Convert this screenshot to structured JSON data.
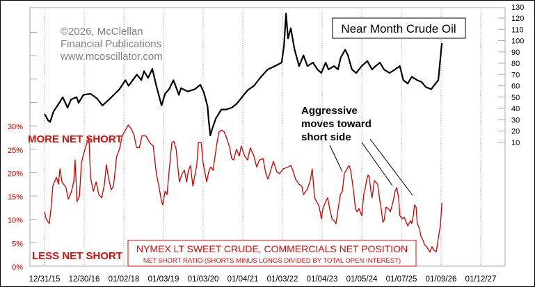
{
  "chart_data": [
    {
      "type": "line",
      "title": "Near Month Crude Oil",
      "axis": "right",
      "ylim": [
        0,
        130
      ],
      "yticks": [
        "130",
        "120",
        "110",
        "100",
        "90",
        "80",
        "70",
        "60",
        "50",
        "40",
        "30",
        "20",
        "10"
      ],
      "ytick_values": [
        130,
        120,
        110,
        100,
        90,
        80,
        70,
        60,
        50,
        40,
        30,
        20,
        10
      ],
      "color": "#000000",
      "points": [
        [
          2016.0,
          35
        ],
        [
          2016.02,
          34
        ],
        [
          2016.09,
          29.5
        ],
        [
          2016.14,
          28
        ],
        [
          2016.23,
          37.5
        ],
        [
          2016.32,
          42
        ],
        [
          2016.46,
          50
        ],
        [
          2016.58,
          40.6
        ],
        [
          2016.67,
          48
        ],
        [
          2016.81,
          50
        ],
        [
          2016.86,
          45
        ],
        [
          2016.98,
          52
        ],
        [
          2017.16,
          53
        ],
        [
          2017.33,
          48.6
        ],
        [
          2017.46,
          42.5
        ],
        [
          2017.63,
          48
        ],
        [
          2017.74,
          51.7
        ],
        [
          2017.89,
          57
        ],
        [
          2018.04,
          65
        ],
        [
          2018.12,
          60
        ],
        [
          2018.33,
          70
        ],
        [
          2018.44,
          65
        ],
        [
          2018.51,
          73
        ],
        [
          2018.61,
          67
        ],
        [
          2018.72,
          75
        ],
        [
          2018.82,
          60
        ],
        [
          2018.88,
          52
        ],
        [
          2018.95,
          42.5
        ],
        [
          2019.04,
          53
        ],
        [
          2019.14,
          57
        ],
        [
          2019.25,
          65
        ],
        [
          2019.39,
          52
        ],
        [
          2019.44,
          58
        ],
        [
          2019.61,
          55
        ],
        [
          2019.79,
          57
        ],
        [
          2019.93,
          61
        ],
        [
          2020.02,
          54
        ],
        [
          2020.11,
          42
        ],
        [
          2020.14,
          29.5
        ],
        [
          2020.18,
          16
        ],
        [
          2020.23,
          22
        ],
        [
          2020.32,
          31
        ],
        [
          2020.46,
          39
        ],
        [
          2020.58,
          39
        ],
        [
          2020.72,
          40.6
        ],
        [
          2020.84,
          44
        ],
        [
          2020.98,
          50
        ],
        [
          2021.12,
          56
        ],
        [
          2021.28,
          60
        ],
        [
          2021.46,
          68
        ],
        [
          2021.63,
          74.5
        ],
        [
          2021.81,
          77.5
        ],
        [
          2021.98,
          80.6
        ],
        [
          2022.04,
          96
        ],
        [
          2022.09,
          124
        ],
        [
          2022.14,
          102
        ],
        [
          2022.21,
          111
        ],
        [
          2022.3,
          93
        ],
        [
          2022.42,
          77.5
        ],
        [
          2022.53,
          87
        ],
        [
          2022.63,
          77.5
        ],
        [
          2022.77,
          80.6
        ],
        [
          2022.88,
          74.5
        ],
        [
          2022.98,
          71.4
        ],
        [
          2023.09,
          80.6
        ],
        [
          2023.16,
          74.5
        ],
        [
          2023.3,
          77.5
        ],
        [
          2023.4,
          74.5
        ],
        [
          2023.47,
          85
        ],
        [
          2023.58,
          92
        ],
        [
          2023.65,
          87
        ],
        [
          2023.75,
          74.5
        ],
        [
          2023.86,
          71.4
        ],
        [
          2024.0,
          77.5
        ],
        [
          2024.14,
          82
        ],
        [
          2024.26,
          74.5
        ],
        [
          2024.35,
          77.5
        ],
        [
          2024.46,
          80.6
        ],
        [
          2024.56,
          74.5
        ],
        [
          2024.7,
          71.4
        ],
        [
          2024.84,
          74.5
        ],
        [
          2024.96,
          77.5
        ],
        [
          2025.05,
          65
        ],
        [
          2025.16,
          62
        ],
        [
          2025.26,
          68
        ],
        [
          2025.4,
          65
        ],
        [
          2025.51,
          63.4
        ],
        [
          2025.61,
          59
        ],
        [
          2025.75,
          57
        ],
        [
          2025.86,
          62
        ],
        [
          2025.93,
          65
        ],
        [
          2025.98,
          83.7
        ],
        [
          2026.02,
          97.8
        ]
      ]
    },
    {
      "type": "line",
      "title": "NYMEX LT SWEET CRUDE, COMMERCIALS NET POSITION",
      "subtitle": "NET SHORT RATIO (SHORTS MINUS LONGS DIVIDED BY TOTAL OPEN INTEREST)",
      "axis": "left",
      "ylim": [
        0,
        55
      ],
      "yticks": [
        "30%",
        "25%",
        "20%",
        "15%",
        "10%",
        "5%",
        "0%"
      ],
      "ytick_values": [
        30,
        25,
        20,
        15,
        10,
        5,
        0
      ],
      "color": "#cc0000",
      "points": [
        [
          2016.0,
          11.6
        ],
        [
          2016.04,
          10.1
        ],
        [
          2016.12,
          9.1
        ],
        [
          2016.16,
          12.0
        ],
        [
          2016.21,
          17.2
        ],
        [
          2016.3,
          19.0
        ],
        [
          2016.35,
          17.5
        ],
        [
          2016.39,
          20.8
        ],
        [
          2016.44,
          18.0
        ],
        [
          2016.54,
          16.8
        ],
        [
          2016.6,
          14.3
        ],
        [
          2016.68,
          16.0
        ],
        [
          2016.74,
          18.3
        ],
        [
          2016.77,
          22.7
        ],
        [
          2016.82,
          13.8
        ],
        [
          2016.88,
          15.0
        ],
        [
          2016.93,
          22.0
        ],
        [
          2016.98,
          23.9
        ],
        [
          2017.07,
          26.4
        ],
        [
          2017.12,
          27.5
        ],
        [
          2017.16,
          19.0
        ],
        [
          2017.23,
          16.0
        ],
        [
          2017.3,
          18.0
        ],
        [
          2017.37,
          15.3
        ],
        [
          2017.44,
          14.6
        ],
        [
          2017.51,
          17.5
        ],
        [
          2017.56,
          21.7
        ],
        [
          2017.61,
          19.0
        ],
        [
          2017.68,
          16.3
        ],
        [
          2017.74,
          17.2
        ],
        [
          2017.82,
          23.5
        ],
        [
          2017.89,
          25.0
        ],
        [
          2017.96,
          27.9
        ],
        [
          2018.04,
          29.1
        ],
        [
          2018.11,
          30.2
        ],
        [
          2018.18,
          29.4
        ],
        [
          2018.25,
          28.2
        ],
        [
          2018.32,
          25.4
        ],
        [
          2018.39,
          25.3
        ],
        [
          2018.46,
          27.9
        ],
        [
          2018.56,
          27.8
        ],
        [
          2018.65,
          26.4
        ],
        [
          2018.74,
          25.7
        ],
        [
          2018.82,
          19.8
        ],
        [
          2018.89,
          16.8
        ],
        [
          2018.95,
          13.8
        ],
        [
          2018.98,
          13.1
        ],
        [
          2019.04,
          16.0
        ],
        [
          2019.09,
          15.3
        ],
        [
          2019.14,
          20.2
        ],
        [
          2019.21,
          26.4
        ],
        [
          2019.26,
          26.7
        ],
        [
          2019.32,
          25.0
        ],
        [
          2019.37,
          20.5
        ],
        [
          2019.4,
          18.0
        ],
        [
          2019.47,
          19.8
        ],
        [
          2019.53,
          20.5
        ],
        [
          2019.58,
          18.0
        ],
        [
          2019.63,
          20.5
        ],
        [
          2019.68,
          21.5
        ],
        [
          2019.74,
          17.1
        ],
        [
          2019.84,
          21.7
        ],
        [
          2019.88,
          26.4
        ],
        [
          2019.95,
          26.4
        ],
        [
          2020.0,
          22.0
        ],
        [
          2020.05,
          19.8
        ],
        [
          2020.09,
          18.0
        ],
        [
          2020.14,
          20.2
        ],
        [
          2020.19,
          21.2
        ],
        [
          2020.25,
          20.5
        ],
        [
          2020.3,
          23.5
        ],
        [
          2020.35,
          26.4
        ],
        [
          2020.4,
          28.7
        ],
        [
          2020.46,
          29.1
        ],
        [
          2020.53,
          28.7
        ],
        [
          2020.6,
          27.2
        ],
        [
          2020.67,
          25.3
        ],
        [
          2020.72,
          23.0
        ],
        [
          2020.77,
          22.7
        ],
        [
          2020.84,
          25.0
        ],
        [
          2020.91,
          23.5
        ],
        [
          2020.96,
          25.7
        ],
        [
          2021.05,
          23.5
        ],
        [
          2021.12,
          22.7
        ],
        [
          2021.19,
          25.3
        ],
        [
          2021.28,
          23.5
        ],
        [
          2021.35,
          21.2
        ],
        [
          2021.42,
          22.7
        ],
        [
          2021.51,
          23.0
        ],
        [
          2021.58,
          19.8
        ],
        [
          2021.63,
          18.6
        ],
        [
          2021.68,
          19.8
        ],
        [
          2021.77,
          22.4
        ],
        [
          2021.86,
          20.1
        ],
        [
          2021.93,
          19.8
        ],
        [
          2022.02,
          20.8
        ],
        [
          2022.14,
          21.2
        ],
        [
          2022.21,
          21.5
        ],
        [
          2022.26,
          20.5
        ],
        [
          2022.33,
          18.6
        ],
        [
          2022.42,
          17.5
        ],
        [
          2022.49,
          17.1
        ],
        [
          2022.53,
          15.3
        ],
        [
          2022.63,
          16.5
        ],
        [
          2022.7,
          18.3
        ],
        [
          2022.75,
          20.8
        ],
        [
          2022.81,
          14.6
        ],
        [
          2022.86,
          13.8
        ],
        [
          2022.91,
          13.1
        ],
        [
          2022.95,
          11.6
        ],
        [
          2022.98,
          10.1
        ],
        [
          2023.02,
          12.3
        ],
        [
          2023.09,
          13.8
        ],
        [
          2023.14,
          14.6
        ],
        [
          2023.19,
          12.3
        ],
        [
          2023.25,
          10.1
        ],
        [
          2023.3,
          9.7
        ],
        [
          2023.35,
          9.1
        ],
        [
          2023.4,
          12.0
        ],
        [
          2023.46,
          15.3
        ],
        [
          2023.51,
          16.0
        ],
        [
          2023.56,
          19.8
        ],
        [
          2023.61,
          20.5
        ],
        [
          2023.65,
          21.2
        ],
        [
          2023.68,
          21.5
        ],
        [
          2023.72,
          20.5
        ],
        [
          2023.77,
          17.5
        ],
        [
          2023.81,
          14.6
        ],
        [
          2023.84,
          12.3
        ],
        [
          2023.88,
          11.6
        ],
        [
          2023.93,
          12.3
        ],
        [
          2024.0,
          10.8
        ],
        [
          2024.05,
          15.3
        ],
        [
          2024.09,
          16.8
        ],
        [
          2024.12,
          18.3
        ],
        [
          2024.16,
          19.5
        ],
        [
          2024.19,
          19.0
        ],
        [
          2024.23,
          16.0
        ],
        [
          2024.26,
          14.6
        ],
        [
          2024.32,
          18.3
        ],
        [
          2024.4,
          17.5
        ],
        [
          2024.46,
          13.8
        ],
        [
          2024.49,
          12.3
        ],
        [
          2024.53,
          9.4
        ],
        [
          2024.56,
          9.7
        ],
        [
          2024.61,
          12.6
        ],
        [
          2024.67,
          12.3
        ],
        [
          2024.72,
          11.6
        ],
        [
          2024.79,
          13.8
        ],
        [
          2024.84,
          16.0
        ],
        [
          2024.88,
          16.8
        ],
        [
          2024.93,
          14.6
        ],
        [
          2024.96,
          10.8
        ],
        [
          2025.02,
          10.1
        ],
        [
          2025.07,
          10.5
        ],
        [
          2025.12,
          9.4
        ],
        [
          2025.16,
          8.6
        ],
        [
          2025.23,
          9.7
        ],
        [
          2025.26,
          9.1
        ],
        [
          2025.3,
          10.8
        ],
        [
          2025.33,
          13.1
        ],
        [
          2025.37,
          12.6
        ],
        [
          2025.4,
          9.1
        ],
        [
          2025.46,
          7.9
        ],
        [
          2025.49,
          6.4
        ],
        [
          2025.54,
          5.6
        ],
        [
          2025.58,
          4.6
        ],
        [
          2025.63,
          4.2
        ],
        [
          2025.67,
          3.7
        ],
        [
          2025.72,
          3.0
        ],
        [
          2025.77,
          4.2
        ],
        [
          2025.81,
          3.4
        ],
        [
          2025.88,
          3.1
        ],
        [
          2025.91,
          4.9
        ],
        [
          2025.95,
          7.1
        ],
        [
          2025.98,
          8.6
        ],
        [
          2026.0,
          10.8
        ],
        [
          2026.02,
          13.5
        ]
      ]
    }
  ],
  "x_axis": {
    "ticks": [
      "12/31/15",
      "12/30/16",
      "01/02/18",
      "01/03/19",
      "01/03/20",
      "01/04/21",
      "01/03/22",
      "01/04/23",
      "01/05/24",
      "01/07/25",
      "01/09/26",
      "01/12/27"
    ],
    "tick_values": [
      2016,
      2017,
      2018,
      2019,
      2020,
      2021,
      2022,
      2023,
      2024,
      2025,
      2026,
      2027
    ],
    "xlim": [
      2015.63,
      2027.6
    ],
    "grid": "dotted-vertical"
  },
  "annotations": {
    "copyright": "©2026, McClellan",
    "publisher": "Financial Publications",
    "website": "www.mcoscillator.com",
    "more_net_short": "MORE NET SHORT",
    "less_net_short": "LESS NET SHORT",
    "callout_line1": "Aggressive",
    "callout_line2": "moves toward",
    "callout_line3": "short side"
  }
}
